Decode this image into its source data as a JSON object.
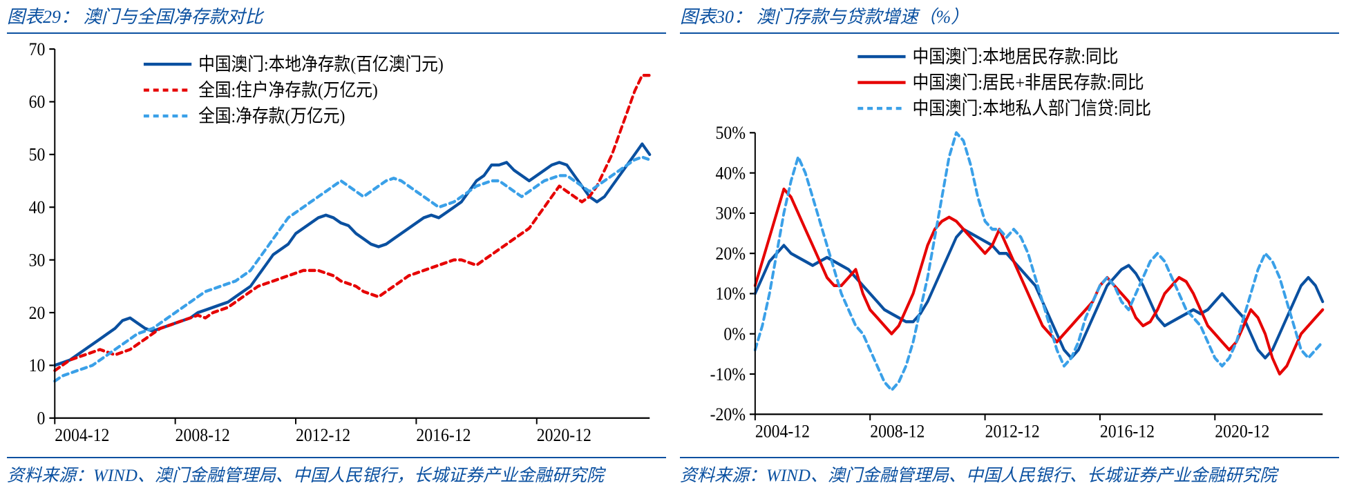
{
  "left": {
    "title_prefix": "图表29：",
    "title": "澳门与全国净存款对比",
    "source": "资料来源：WIND、澳门金融管理局、中国人民银行，长城证券产业金融研究院",
    "chart": {
      "type": "line",
      "background_color": "#ffffff",
      "axis_color": "#000000",
      "ylim": [
        0,
        70
      ],
      "ytick_step": 10,
      "n_x": 80,
      "x_tick_indices": [
        0,
        16,
        32,
        48,
        64
      ],
      "x_tick_labels": [
        "2004-12",
        "2008-12",
        "2012-12",
        "2016-12",
        "2020-12"
      ],
      "axis_fontsize": 24,
      "legend_fontsize": 24,
      "line_width": 4,
      "series": [
        {
          "label": "中国澳门:本地净存款(百亿澳门元)",
          "color": "#0a50a0",
          "dash": "",
          "values": [
            10,
            10.5,
            11,
            12,
            13,
            14,
            15,
            16,
            17,
            18.5,
            19,
            18,
            17,
            16.5,
            17,
            17.5,
            18,
            18.5,
            19,
            20,
            20.5,
            21,
            21.5,
            22,
            23,
            24,
            25,
            27,
            29,
            31,
            32,
            33,
            35,
            36,
            37,
            38,
            38.5,
            38,
            37,
            36.5,
            35,
            34,
            33,
            32.5,
            33,
            34,
            35,
            36,
            37,
            38,
            38.5,
            38,
            39,
            40,
            41,
            43,
            45,
            46,
            48,
            48,
            48.5,
            47,
            46,
            45,
            46,
            47,
            48,
            48.5,
            48,
            46,
            44,
            42,
            41,
            42,
            44,
            46,
            48,
            50,
            52,
            50
          ]
        },
        {
          "label": "全国:住户净存款(万亿元)",
          "color": "#e60000",
          "dash": "8,6",
          "values": [
            9,
            10,
            11,
            11.5,
            12,
            12.5,
            13,
            12.5,
            12,
            12.5,
            13,
            14,
            15,
            16,
            17,
            17.5,
            18,
            18.5,
            19,
            19.5,
            19,
            20,
            20.5,
            21,
            22,
            23,
            24,
            25,
            25.5,
            26,
            26.5,
            27,
            27.5,
            28,
            28,
            28,
            27.5,
            27,
            26,
            25.5,
            25,
            24,
            23.5,
            23,
            24,
            25,
            26,
            27,
            27.5,
            28,
            28.5,
            29,
            29.5,
            30,
            30,
            29.5,
            29,
            30,
            31,
            32,
            33,
            34,
            35,
            36,
            38,
            40,
            42,
            44,
            43,
            42,
            41,
            42,
            44,
            47,
            50,
            54,
            58,
            62,
            65,
            65
          ]
        },
        {
          "label": "全国:净存款(万亿元)",
          "color": "#3aa0e8",
          "dash": "8,6",
          "values": [
            7,
            8,
            8.5,
            9,
            9.5,
            10,
            11,
            12,
            13,
            14,
            15,
            16,
            16.5,
            17,
            18,
            19,
            20,
            21,
            22,
            23,
            24,
            24.5,
            25,
            25.5,
            26,
            27,
            28,
            30,
            32,
            34,
            36,
            38,
            39,
            40,
            41,
            42,
            43,
            44,
            45,
            44,
            43,
            42,
            43,
            44,
            45,
            45.5,
            45,
            44,
            43,
            42,
            41,
            40,
            40.5,
            41,
            42,
            43,
            44,
            44.5,
            45,
            45,
            44,
            43,
            42,
            43,
            44,
            45,
            45.5,
            46,
            46,
            45,
            44,
            43,
            44,
            45,
            46,
            47,
            48,
            49,
            49.5,
            49
          ]
        }
      ]
    }
  },
  "right": {
    "title_prefix": "图表30：",
    "title": "澳门存款与贷款增速（%）",
    "source": "资料来源：WIND、澳门金融管理局、中国人民银行、长城证券产业金融研究院",
    "chart": {
      "type": "line",
      "background_color": "#ffffff",
      "axis_color": "#000000",
      "ylim": [
        -20,
        50
      ],
      "ytick_step": 10,
      "y_tick_suffix": "%",
      "n_x": 80,
      "x_tick_indices": [
        0,
        16,
        32,
        48,
        64
      ],
      "x_tick_labels": [
        "2004-12",
        "2008-12",
        "2012-12",
        "2016-12",
        "2020-12"
      ],
      "axis_fontsize": 24,
      "legend_fontsize": 24,
      "line_width": 4,
      "series": [
        {
          "label": "中国澳门:本地居民存款:同比",
          "color": "#0a50a0",
          "dash": "",
          "values": [
            10,
            14,
            18,
            20,
            22,
            20,
            19,
            18,
            17,
            18,
            19,
            18,
            17,
            16,
            14,
            12,
            10,
            8,
            6,
            5,
            4,
            3,
            3,
            5,
            8,
            12,
            16,
            20,
            24,
            26,
            25,
            24,
            23,
            22,
            20,
            20,
            18,
            16,
            14,
            12,
            8,
            4,
            0,
            -4,
            -6,
            -4,
            0,
            4,
            8,
            12,
            14,
            16,
            17,
            15,
            12,
            8,
            4,
            2,
            3,
            4,
            5,
            6,
            5,
            6,
            8,
            10,
            8,
            6,
            4,
            0,
            -4,
            -6,
            -4,
            0,
            4,
            8,
            12,
            14,
            12,
            8
          ]
        },
        {
          "label": "中国澳门:居民+非居民存款:同比",
          "color": "#e60000",
          "dash": "",
          "values": [
            12,
            18,
            24,
            30,
            36,
            34,
            30,
            26,
            22,
            18,
            14,
            12,
            12,
            14,
            16,
            10,
            6,
            4,
            2,
            0,
            2,
            6,
            10,
            16,
            22,
            26,
            28,
            29,
            28,
            26,
            24,
            22,
            20,
            22,
            26,
            22,
            18,
            14,
            10,
            6,
            2,
            0,
            -2,
            0,
            2,
            4,
            6,
            8,
            12,
            14,
            12,
            10,
            8,
            4,
            2,
            3,
            6,
            10,
            12,
            14,
            13,
            10,
            6,
            2,
            0,
            -2,
            -4,
            -2,
            2,
            6,
            4,
            0,
            -6,
            -10,
            -8,
            -4,
            0,
            2,
            4,
            6
          ]
        },
        {
          "label": "中国澳门:本地私人部门信贷:同比",
          "color": "#3aa0e8",
          "dash": "8,6",
          "values": [
            -4,
            2,
            10,
            20,
            30,
            38,
            44,
            40,
            34,
            28,
            22,
            16,
            10,
            6,
            2,
            0,
            -4,
            -8,
            -12,
            -14,
            -12,
            -8,
            -2,
            6,
            14,
            24,
            34,
            44,
            50,
            48,
            42,
            34,
            28,
            26,
            26,
            24,
            26,
            24,
            20,
            14,
            8,
            2,
            -4,
            -8,
            -6,
            -2,
            4,
            8,
            12,
            14,
            12,
            8,
            6,
            10,
            14,
            18,
            20,
            18,
            14,
            10,
            6,
            4,
            2,
            -2,
            -6,
            -8,
            -6,
            -2,
            4,
            10,
            16,
            20,
            18,
            14,
            8,
            2,
            -4,
            -6,
            -4,
            -2
          ]
        }
      ]
    }
  }
}
